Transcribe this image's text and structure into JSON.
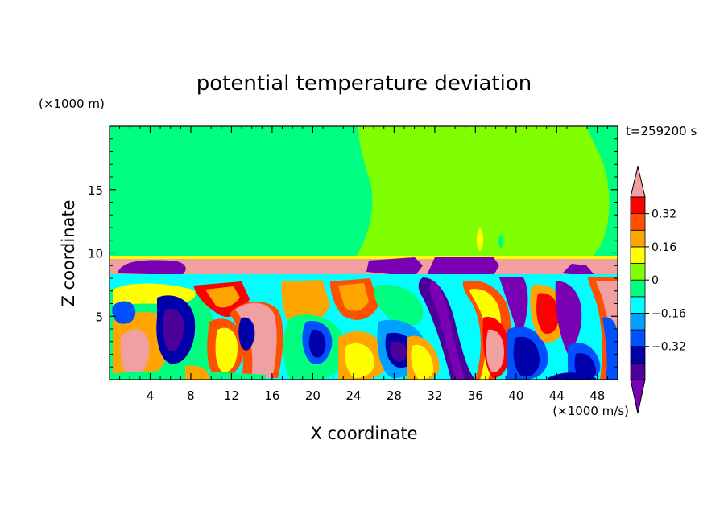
{
  "chart_data": {
    "type": "heatmap",
    "title": "potential temperature deviation",
    "xlabel": "X coordinate",
    "ylabel": "Z coordinate",
    "x_units": "(×1000 m/s)",
    "y_units": "(×1000 m)",
    "time_label": "t=259200 s",
    "xlim": [
      0,
      50
    ],
    "ylim": [
      0,
      20
    ],
    "x_ticks": [
      4,
      8,
      12,
      16,
      20,
      24,
      28,
      32,
      36,
      40,
      44,
      48
    ],
    "y_ticks": [
      5,
      10,
      15
    ],
    "colorbar": {
      "levels": [
        -0.48,
        -0.4,
        -0.32,
        -0.24,
        -0.16,
        -0.08,
        0,
        0.08,
        0.16,
        0.24,
        0.32,
        0.4
      ],
      "tick_labels": [
        "0.32",
        "0.16",
        "0",
        "−0.16",
        "−0.32"
      ],
      "tick_values": [
        0.32,
        0.16,
        0,
        -0.16,
        -0.32
      ],
      "colors": [
        "#7a00b4",
        "#4a0099",
        "#0000aa",
        "#0050ff",
        "#00a0ff",
        "#00ffff",
        "#00ff80",
        "#80ff00",
        "#ffff00",
        "#ffa500",
        "#ff5000",
        "#ff0000",
        "#f0a0a0"
      ]
    }
  }
}
